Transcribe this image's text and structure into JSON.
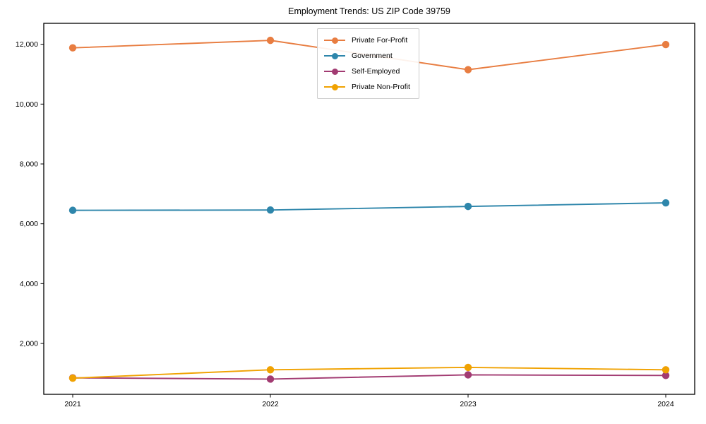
{
  "chart_data": {
    "type": "line",
    "title": "Employment Trends: US ZIP Code 39759",
    "xlabel": "",
    "ylabel": "",
    "categories": [
      "2021",
      "2022",
      "2023",
      "2024"
    ],
    "series": [
      {
        "name": "Private For-Profit",
        "color": "#E87D41",
        "values": [
          11880,
          12130,
          11150,
          11990
        ]
      },
      {
        "name": "Government",
        "color": "#2E86AB",
        "values": [
          6450,
          6460,
          6580,
          6700
        ]
      },
      {
        "name": "Self-Employed",
        "color": "#A23B72",
        "values": [
          850,
          810,
          950,
          930
        ]
      },
      {
        "name": "Private Non-Profit",
        "color": "#F0A202",
        "values": [
          840,
          1120,
          1200,
          1120
        ]
      }
    ],
    "ylim": [
      300,
      12700
    ],
    "yticks": [
      {
        "value": 2000,
        "label": "2,000"
      },
      {
        "value": 4000,
        "label": "4,000"
      },
      {
        "value": 6000,
        "label": "6,000"
      },
      {
        "value": 8000,
        "label": "8,000"
      },
      {
        "value": 10000,
        "label": "10,000"
      },
      {
        "value": 12000,
        "label": "12,000"
      }
    ],
    "grid": false,
    "legend_position": "upper-center",
    "frame_color": "#000000",
    "tick_label_color": "#000000"
  }
}
